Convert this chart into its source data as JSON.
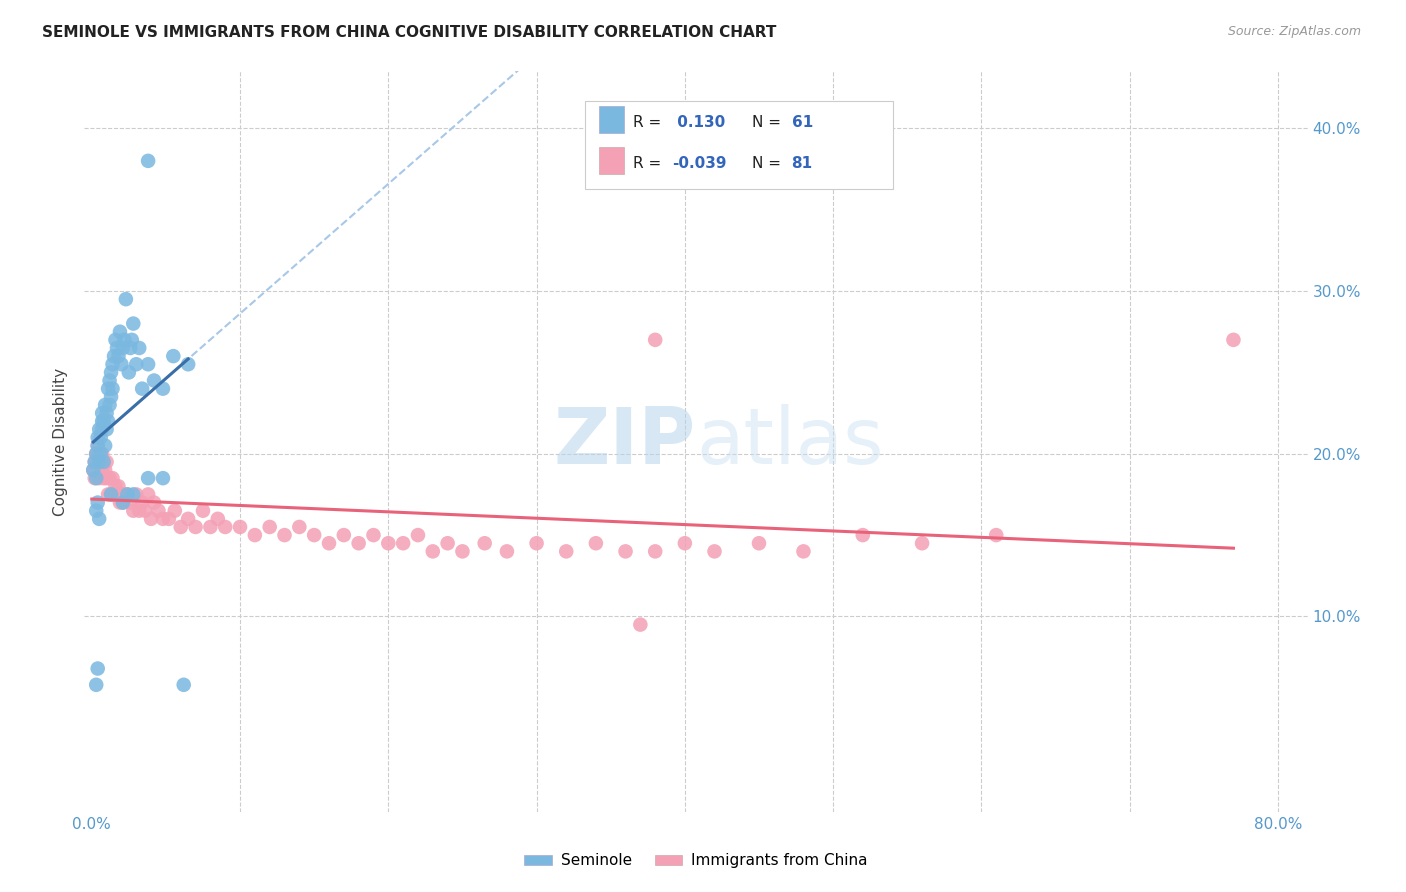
{
  "title": "SEMINOLE VS IMMIGRANTS FROM CHINA COGNITIVE DISABILITY CORRELATION CHART",
  "source": "Source: ZipAtlas.com",
  "ylabel": "Cognitive Disability",
  "xlim": [
    -0.005,
    0.82
  ],
  "ylim": [
    -0.02,
    0.435
  ],
  "blue_color": "#7ab8e0",
  "pink_color": "#f4a0b5",
  "blue_line_color": "#3a6ea8",
  "pink_line_color": "#e8637a",
  "dashed_line_color": "#a8c8e8",
  "background_color": "#ffffff",
  "watermark": "ZIPatlas",
  "seminole_x": [
    0.001,
    0.002,
    0.003,
    0.003,
    0.004,
    0.004,
    0.005,
    0.005,
    0.006,
    0.006,
    0.007,
    0.007,
    0.007,
    0.008,
    0.008,
    0.009,
    0.009,
    0.01,
    0.01,
    0.011,
    0.011,
    0.012,
    0.012,
    0.013,
    0.013,
    0.014,
    0.014,
    0.015,
    0.016,
    0.017,
    0.018,
    0.019,
    0.02,
    0.021,
    0.022,
    0.023,
    0.025,
    0.026,
    0.027,
    0.028,
    0.03,
    0.032,
    0.034,
    0.038,
    0.042,
    0.048,
    0.055,
    0.065,
    0.003,
    0.004,
    0.005,
    0.013,
    0.021,
    0.024,
    0.028,
    0.038,
    0.048,
    0.003,
    0.004,
    0.062,
    0.038
  ],
  "seminole_y": [
    0.19,
    0.195,
    0.2,
    0.185,
    0.205,
    0.21,
    0.195,
    0.215,
    0.2,
    0.21,
    0.22,
    0.215,
    0.225,
    0.195,
    0.22,
    0.23,
    0.205,
    0.215,
    0.225,
    0.24,
    0.22,
    0.23,
    0.245,
    0.235,
    0.25,
    0.24,
    0.255,
    0.26,
    0.27,
    0.265,
    0.26,
    0.275,
    0.255,
    0.265,
    0.27,
    0.295,
    0.25,
    0.265,
    0.27,
    0.28,
    0.255,
    0.265,
    0.24,
    0.255,
    0.245,
    0.24,
    0.26,
    0.255,
    0.165,
    0.17,
    0.16,
    0.175,
    0.17,
    0.175,
    0.175,
    0.185,
    0.185,
    0.058,
    0.068,
    0.058,
    0.38
  ],
  "china_x": [
    0.001,
    0.002,
    0.002,
    0.003,
    0.004,
    0.004,
    0.005,
    0.005,
    0.006,
    0.007,
    0.007,
    0.008,
    0.008,
    0.009,
    0.01,
    0.01,
    0.011,
    0.012,
    0.013,
    0.014,
    0.015,
    0.016,
    0.017,
    0.018,
    0.019,
    0.02,
    0.021,
    0.022,
    0.024,
    0.026,
    0.028,
    0.03,
    0.032,
    0.034,
    0.036,
    0.038,
    0.04,
    0.042,
    0.045,
    0.048,
    0.052,
    0.056,
    0.06,
    0.065,
    0.07,
    0.075,
    0.08,
    0.085,
    0.09,
    0.1,
    0.11,
    0.12,
    0.13,
    0.14,
    0.15,
    0.16,
    0.17,
    0.18,
    0.19,
    0.2,
    0.21,
    0.22,
    0.23,
    0.24,
    0.25,
    0.265,
    0.28,
    0.3,
    0.32,
    0.34,
    0.36,
    0.38,
    0.4,
    0.42,
    0.45,
    0.48,
    0.52,
    0.56,
    0.61,
    0.38,
    0.77,
    0.37
  ],
  "china_y": [
    0.19,
    0.185,
    0.195,
    0.2,
    0.195,
    0.205,
    0.185,
    0.2,
    0.195,
    0.19,
    0.2,
    0.185,
    0.195,
    0.19,
    0.195,
    0.185,
    0.175,
    0.185,
    0.175,
    0.185,
    0.175,
    0.18,
    0.175,
    0.18,
    0.17,
    0.175,
    0.17,
    0.175,
    0.175,
    0.17,
    0.165,
    0.175,
    0.165,
    0.17,
    0.165,
    0.175,
    0.16,
    0.17,
    0.165,
    0.16,
    0.16,
    0.165,
    0.155,
    0.16,
    0.155,
    0.165,
    0.155,
    0.16,
    0.155,
    0.155,
    0.15,
    0.155,
    0.15,
    0.155,
    0.15,
    0.145,
    0.15,
    0.145,
    0.15,
    0.145,
    0.145,
    0.15,
    0.14,
    0.145,
    0.14,
    0.145,
    0.14,
    0.145,
    0.14,
    0.145,
    0.14,
    0.14,
    0.145,
    0.14,
    0.145,
    0.14,
    0.15,
    0.145,
    0.15,
    0.27,
    0.27,
    0.095
  ]
}
